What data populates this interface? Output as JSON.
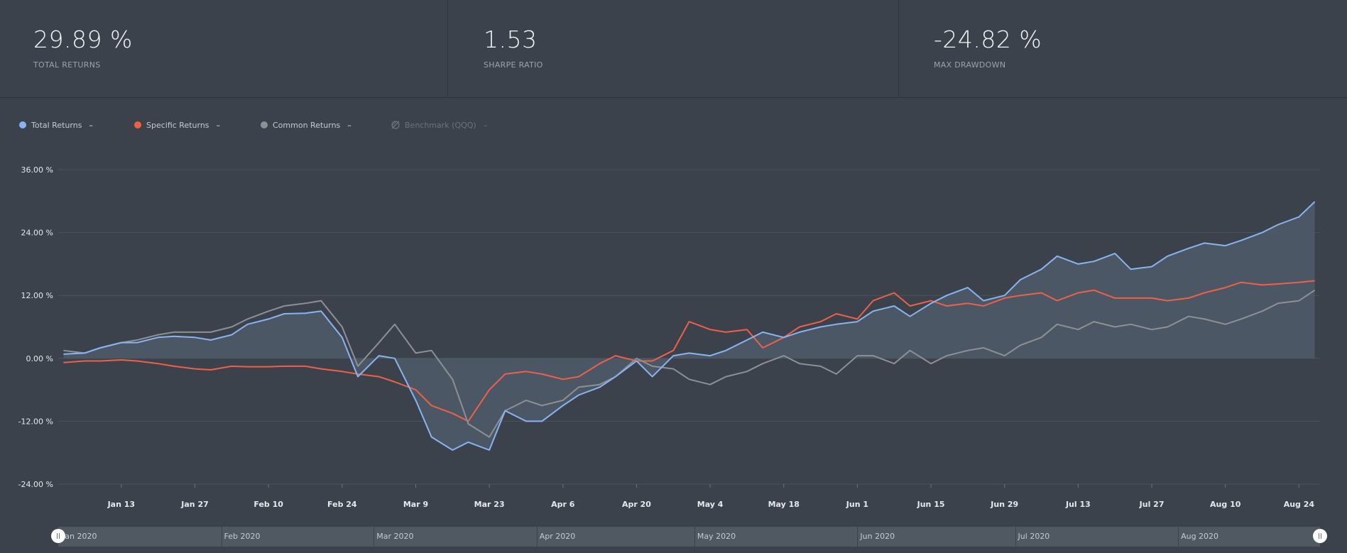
{
  "stats": [
    {
      "value": "29.89 %",
      "label": "TOTAL RETURNS"
    },
    {
      "value": "1.53",
      "label": "SHARPE RATIO"
    },
    {
      "value": "-24.82 %",
      "label": "MAX DRAWDOWN"
    }
  ],
  "legend": [
    {
      "label": "Total Returns",
      "value": "–",
      "color": "#8ab4f0"
    },
    {
      "label": "Specific Returns",
      "value": "–",
      "color": "#ef6049"
    },
    {
      "label": "Common Returns",
      "value": "–",
      "color": "#8d9095"
    },
    {
      "label": "Benchmark (QQQ)",
      "value": "–",
      "color": "#6b737d",
      "disabled": true
    }
  ],
  "navigator": {
    "months": [
      "Jan 2020",
      "Feb 2020",
      "Mar 2020",
      "Apr 2020",
      "May 2020",
      "Jun 2020",
      "Jul 2020",
      "Aug 2020"
    ]
  },
  "chart_data": {
    "type": "line",
    "y_ticks": [
      "36.00 %",
      "24.00 %",
      "12.00 %",
      "0.00 %",
      "-12.00 %",
      "-24.00 %"
    ],
    "ylim": [
      -24,
      36
    ],
    "x_ticks": [
      "Jan 13",
      "Jan 27",
      "Feb 10",
      "Feb 24",
      "Mar 9",
      "Mar 23",
      "Apr 6",
      "Apr 20",
      "May 4",
      "May 18",
      "Jun 1",
      "Jun 15",
      "Jun 29",
      "Jul 13",
      "Jul 27",
      "Aug 10",
      "Aug 24"
    ],
    "grid": true,
    "series": [
      {
        "name": "Total Returns",
        "color": "#8ab4f0",
        "fill": true,
        "points": [
          [
            "2020-01-02",
            0.8
          ],
          [
            "2020-01-06",
            1.0
          ],
          [
            "2020-01-09",
            2.0
          ],
          [
            "2020-01-13",
            3.0
          ],
          [
            "2020-01-16",
            3.0
          ],
          [
            "2020-01-20",
            4.0
          ],
          [
            "2020-01-23",
            4.2
          ],
          [
            "2020-01-27",
            4.0
          ],
          [
            "2020-01-30",
            3.5
          ],
          [
            "2020-02-03",
            4.5
          ],
          [
            "2020-02-06",
            6.5
          ],
          [
            "2020-02-10",
            7.5
          ],
          [
            "2020-02-13",
            8.5
          ],
          [
            "2020-02-17",
            8.6
          ],
          [
            "2020-02-20",
            9.0
          ],
          [
            "2020-02-24",
            4.0
          ],
          [
            "2020-02-27",
            -3.5
          ],
          [
            "2020-03-02",
            0.5
          ],
          [
            "2020-03-05",
            0.0
          ],
          [
            "2020-03-09",
            -8.0
          ],
          [
            "2020-03-12",
            -15.0
          ],
          [
            "2020-03-16",
            -17.5
          ],
          [
            "2020-03-19",
            -16.0
          ],
          [
            "2020-03-23",
            -17.5
          ],
          [
            "2020-03-26",
            -10.0
          ],
          [
            "2020-03-30",
            -12.0
          ],
          [
            "2020-04-02",
            -12.0
          ],
          [
            "2020-04-06",
            -9.0
          ],
          [
            "2020-04-09",
            -7.0
          ],
          [
            "2020-04-13",
            -5.5
          ],
          [
            "2020-04-16",
            -3.5
          ],
          [
            "2020-04-20",
            -0.5
          ],
          [
            "2020-04-23",
            -3.5
          ],
          [
            "2020-04-27",
            0.5
          ],
          [
            "2020-04-30",
            1.0
          ],
          [
            "2020-05-04",
            0.5
          ],
          [
            "2020-05-07",
            1.5
          ],
          [
            "2020-05-11",
            3.5
          ],
          [
            "2020-05-14",
            5.0
          ],
          [
            "2020-05-18",
            4.0
          ],
          [
            "2020-05-21",
            5.0
          ],
          [
            "2020-05-25",
            6.0
          ],
          [
            "2020-05-28",
            6.5
          ],
          [
            "2020-06-01",
            7.0
          ],
          [
            "2020-06-04",
            9.0
          ],
          [
            "2020-06-08",
            10.0
          ],
          [
            "2020-06-11",
            8.0
          ],
          [
            "2020-06-15",
            10.5
          ],
          [
            "2020-06-18",
            12.0
          ],
          [
            "2020-06-22",
            13.5
          ],
          [
            "2020-06-25",
            11.0
          ],
          [
            "2020-06-29",
            12.0
          ],
          [
            "2020-07-02",
            15.0
          ],
          [
            "2020-07-06",
            17.0
          ],
          [
            "2020-07-09",
            19.5
          ],
          [
            "2020-07-13",
            18.0
          ],
          [
            "2020-07-16",
            18.5
          ],
          [
            "2020-07-20",
            20.0
          ],
          [
            "2020-07-23",
            17.0
          ],
          [
            "2020-07-27",
            17.5
          ],
          [
            "2020-07-30",
            19.5
          ],
          [
            "2020-08-03",
            21.0
          ],
          [
            "2020-08-06",
            22.0
          ],
          [
            "2020-08-10",
            21.5
          ],
          [
            "2020-08-13",
            22.5
          ],
          [
            "2020-08-17",
            24.0
          ],
          [
            "2020-08-20",
            25.5
          ],
          [
            "2020-08-24",
            27.0
          ],
          [
            "2020-08-27",
            29.89
          ]
        ]
      },
      {
        "name": "Specific Returns",
        "color": "#ef6049",
        "fill": false,
        "points": [
          [
            "2020-01-02",
            -0.8
          ],
          [
            "2020-01-06",
            -0.5
          ],
          [
            "2020-01-09",
            -0.5
          ],
          [
            "2020-01-13",
            -0.3
          ],
          [
            "2020-01-16",
            -0.5
          ],
          [
            "2020-01-20",
            -1.0
          ],
          [
            "2020-01-23",
            -1.5
          ],
          [
            "2020-01-27",
            -2.0
          ],
          [
            "2020-01-30",
            -2.2
          ],
          [
            "2020-02-03",
            -1.5
          ],
          [
            "2020-02-06",
            -1.6
          ],
          [
            "2020-02-10",
            -1.6
          ],
          [
            "2020-02-13",
            -1.5
          ],
          [
            "2020-02-17",
            -1.5
          ],
          [
            "2020-02-20",
            -2.0
          ],
          [
            "2020-02-24",
            -2.5
          ],
          [
            "2020-02-27",
            -3.0
          ],
          [
            "2020-03-02",
            -3.5
          ],
          [
            "2020-03-05",
            -4.5
          ],
          [
            "2020-03-09",
            -6.0
          ],
          [
            "2020-03-12",
            -9.0
          ],
          [
            "2020-03-16",
            -10.5
          ],
          [
            "2020-03-19",
            -12.0
          ],
          [
            "2020-03-23",
            -6.0
          ],
          [
            "2020-03-26",
            -3.0
          ],
          [
            "2020-03-30",
            -2.5
          ],
          [
            "2020-04-02",
            -3.0
          ],
          [
            "2020-04-06",
            -4.0
          ],
          [
            "2020-04-09",
            -3.5
          ],
          [
            "2020-04-13",
            -1.0
          ],
          [
            "2020-04-16",
            0.5
          ],
          [
            "2020-04-20",
            -0.5
          ],
          [
            "2020-04-23",
            -0.5
          ],
          [
            "2020-04-27",
            1.5
          ],
          [
            "2020-04-30",
            7.0
          ],
          [
            "2020-05-04",
            5.5
          ],
          [
            "2020-05-07",
            5.0
          ],
          [
            "2020-05-11",
            5.5
          ],
          [
            "2020-05-14",
            2.0
          ],
          [
            "2020-05-18",
            4.0
          ],
          [
            "2020-05-21",
            6.0
          ],
          [
            "2020-05-25",
            7.0
          ],
          [
            "2020-05-28",
            8.5
          ],
          [
            "2020-06-01",
            7.5
          ],
          [
            "2020-06-04",
            11.0
          ],
          [
            "2020-06-08",
            12.5
          ],
          [
            "2020-06-11",
            10.0
          ],
          [
            "2020-06-15",
            11.0
          ],
          [
            "2020-06-18",
            10.0
          ],
          [
            "2020-06-22",
            10.5
          ],
          [
            "2020-06-25",
            10.0
          ],
          [
            "2020-06-29",
            11.5
          ],
          [
            "2020-07-02",
            12.0
          ],
          [
            "2020-07-06",
            12.5
          ],
          [
            "2020-07-09",
            11.0
          ],
          [
            "2020-07-13",
            12.5
          ],
          [
            "2020-07-16",
            13.0
          ],
          [
            "2020-07-20",
            11.5
          ],
          [
            "2020-07-23",
            11.5
          ],
          [
            "2020-07-27",
            11.5
          ],
          [
            "2020-07-30",
            11.0
          ],
          [
            "2020-08-03",
            11.5
          ],
          [
            "2020-08-06",
            12.5
          ],
          [
            "2020-08-10",
            13.5
          ],
          [
            "2020-08-13",
            14.5
          ],
          [
            "2020-08-17",
            14.0
          ],
          [
            "2020-08-20",
            14.2
          ],
          [
            "2020-08-24",
            14.5
          ],
          [
            "2020-08-27",
            14.8
          ]
        ]
      },
      {
        "name": "Common Returns",
        "color": "#8d9095",
        "fill": false,
        "points": [
          [
            "2020-01-02",
            1.5
          ],
          [
            "2020-01-06",
            1.0
          ],
          [
            "2020-01-09",
            2.0
          ],
          [
            "2020-01-13",
            3.0
          ],
          [
            "2020-01-16",
            3.5
          ],
          [
            "2020-01-20",
            4.5
          ],
          [
            "2020-01-23",
            5.0
          ],
          [
            "2020-01-27",
            5.0
          ],
          [
            "2020-01-30",
            5.0
          ],
          [
            "2020-02-03",
            6.0
          ],
          [
            "2020-02-06",
            7.5
          ],
          [
            "2020-02-10",
            9.0
          ],
          [
            "2020-02-13",
            10.0
          ],
          [
            "2020-02-17",
            10.5
          ],
          [
            "2020-02-20",
            11.0
          ],
          [
            "2020-02-24",
            6.0
          ],
          [
            "2020-02-27",
            -1.5
          ],
          [
            "2020-03-02",
            3.0
          ],
          [
            "2020-03-05",
            6.5
          ],
          [
            "2020-03-09",
            1.0
          ],
          [
            "2020-03-12",
            1.5
          ],
          [
            "2020-03-16",
            -4.0
          ],
          [
            "2020-03-19",
            -12.5
          ],
          [
            "2020-03-23",
            -15.0
          ],
          [
            "2020-03-26",
            -10.0
          ],
          [
            "2020-03-30",
            -8.0
          ],
          [
            "2020-04-02",
            -9.0
          ],
          [
            "2020-04-06",
            -8.0
          ],
          [
            "2020-04-09",
            -5.5
          ],
          [
            "2020-04-13",
            -5.0
          ],
          [
            "2020-04-16",
            -3.5
          ],
          [
            "2020-04-20",
            0.0
          ],
          [
            "2020-04-23",
            -1.5
          ],
          [
            "2020-04-27",
            -2.0
          ],
          [
            "2020-04-30",
            -4.0
          ],
          [
            "2020-05-04",
            -5.0
          ],
          [
            "2020-05-07",
            -3.5
          ],
          [
            "2020-05-11",
            -2.5
          ],
          [
            "2020-05-14",
            -1.0
          ],
          [
            "2020-05-18",
            0.5
          ],
          [
            "2020-05-21",
            -1.0
          ],
          [
            "2020-05-25",
            -1.5
          ],
          [
            "2020-05-28",
            -3.0
          ],
          [
            "2020-06-01",
            0.5
          ],
          [
            "2020-06-04",
            0.5
          ],
          [
            "2020-06-08",
            -1.0
          ],
          [
            "2020-06-11",
            1.5
          ],
          [
            "2020-06-15",
            -1.0
          ],
          [
            "2020-06-18",
            0.5
          ],
          [
            "2020-06-22",
            1.5
          ],
          [
            "2020-06-25",
            2.0
          ],
          [
            "2020-06-29",
            0.5
          ],
          [
            "2020-07-02",
            2.5
          ],
          [
            "2020-07-06",
            4.0
          ],
          [
            "2020-07-09",
            6.5
          ],
          [
            "2020-07-13",
            5.5
          ],
          [
            "2020-07-16",
            7.0
          ],
          [
            "2020-07-20",
            6.0
          ],
          [
            "2020-07-23",
            6.5
          ],
          [
            "2020-07-27",
            5.5
          ],
          [
            "2020-07-30",
            6.0
          ],
          [
            "2020-08-03",
            8.0
          ],
          [
            "2020-08-06",
            7.5
          ],
          [
            "2020-08-10",
            6.5
          ],
          [
            "2020-08-13",
            7.5
          ],
          [
            "2020-08-17",
            9.0
          ],
          [
            "2020-08-20",
            10.5
          ],
          [
            "2020-08-24",
            11.0
          ],
          [
            "2020-08-27",
            13.0
          ]
        ]
      }
    ]
  }
}
